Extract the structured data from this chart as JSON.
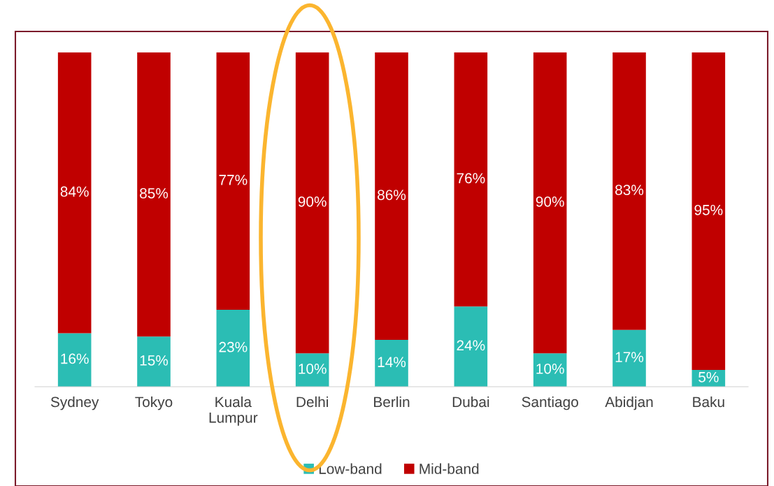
{
  "chart_data": {
    "type": "bar",
    "stacked": true,
    "categories": [
      "Sydney",
      "Tokyo",
      "Kuala\nLumpur",
      "Delhi",
      "Berlin",
      "Dubai",
      "Santiago",
      "Abidjan",
      "Baku"
    ],
    "ylim": [
      0,
      100
    ],
    "series": [
      {
        "name": "Low-band",
        "color": "#2bbdb4",
        "values": [
          16,
          15,
          23,
          10,
          14,
          24,
          10,
          17,
          5
        ],
        "value_labels": [
          "16%",
          "15%",
          "23%",
          "10%",
          "14%",
          "24%",
          "10%",
          "17%",
          "5%"
        ]
      },
      {
        "name": "Mid-band",
        "color": "#c00000",
        "values": [
          84,
          85,
          77,
          90,
          86,
          76,
          90,
          83,
          95
        ],
        "value_labels": [
          "84%",
          "85%",
          "77%",
          "90%",
          "86%",
          "76%",
          "90%",
          "83%",
          "95%"
        ]
      }
    ],
    "legend": "bottom",
    "grid": false,
    "tick_labels": "x"
  }
}
